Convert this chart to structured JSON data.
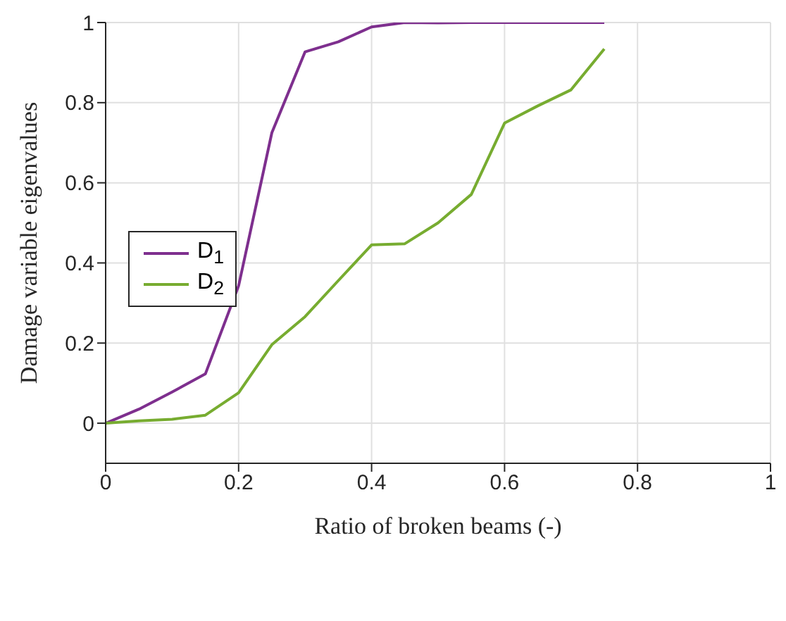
{
  "chart_data": {
    "type": "line",
    "xlabel": "Ratio of broken beams (-)",
    "ylabel": "Damage variable eigenvalues",
    "x": [
      0,
      0.05,
      0.1,
      0.15,
      0.2,
      0.25,
      0.3,
      0.35,
      0.4,
      0.45,
      0.5,
      0.55,
      0.6,
      0.65,
      0.7,
      0.75
    ],
    "series": [
      {
        "name": "D$_{1}$",
        "color": "#7e2f8e",
        "values": [
          0,
          0.035,
          0.078,
          0.123,
          0.343,
          0.725,
          0.927,
          0.952,
          0.989,
          1.0,
          0.999,
          1.0,
          1.0,
          1.0,
          1.0,
          1.0
        ]
      },
      {
        "name": "D$_{2}$",
        "color": "#77ac30",
        "values": [
          0,
          0.006,
          0.01,
          0.02,
          0.076,
          0.196,
          0.266,
          0.356,
          0.445,
          0.448,
          0.5,
          0.571,
          0.749,
          0.792,
          0.832,
          0.934
        ]
      }
    ],
    "xlim": [
      0,
      1
    ],
    "xticks": [
      0,
      0.2,
      0.4,
      0.6,
      0.8,
      1
    ],
    "ylim": [
      -0.1,
      1
    ],
    "yticks": [
      0,
      0.2,
      0.4,
      0.6,
      0.8,
      1
    ],
    "grid": true,
    "legend": "left",
    "marker": "none",
    "line_style": "solid"
  }
}
